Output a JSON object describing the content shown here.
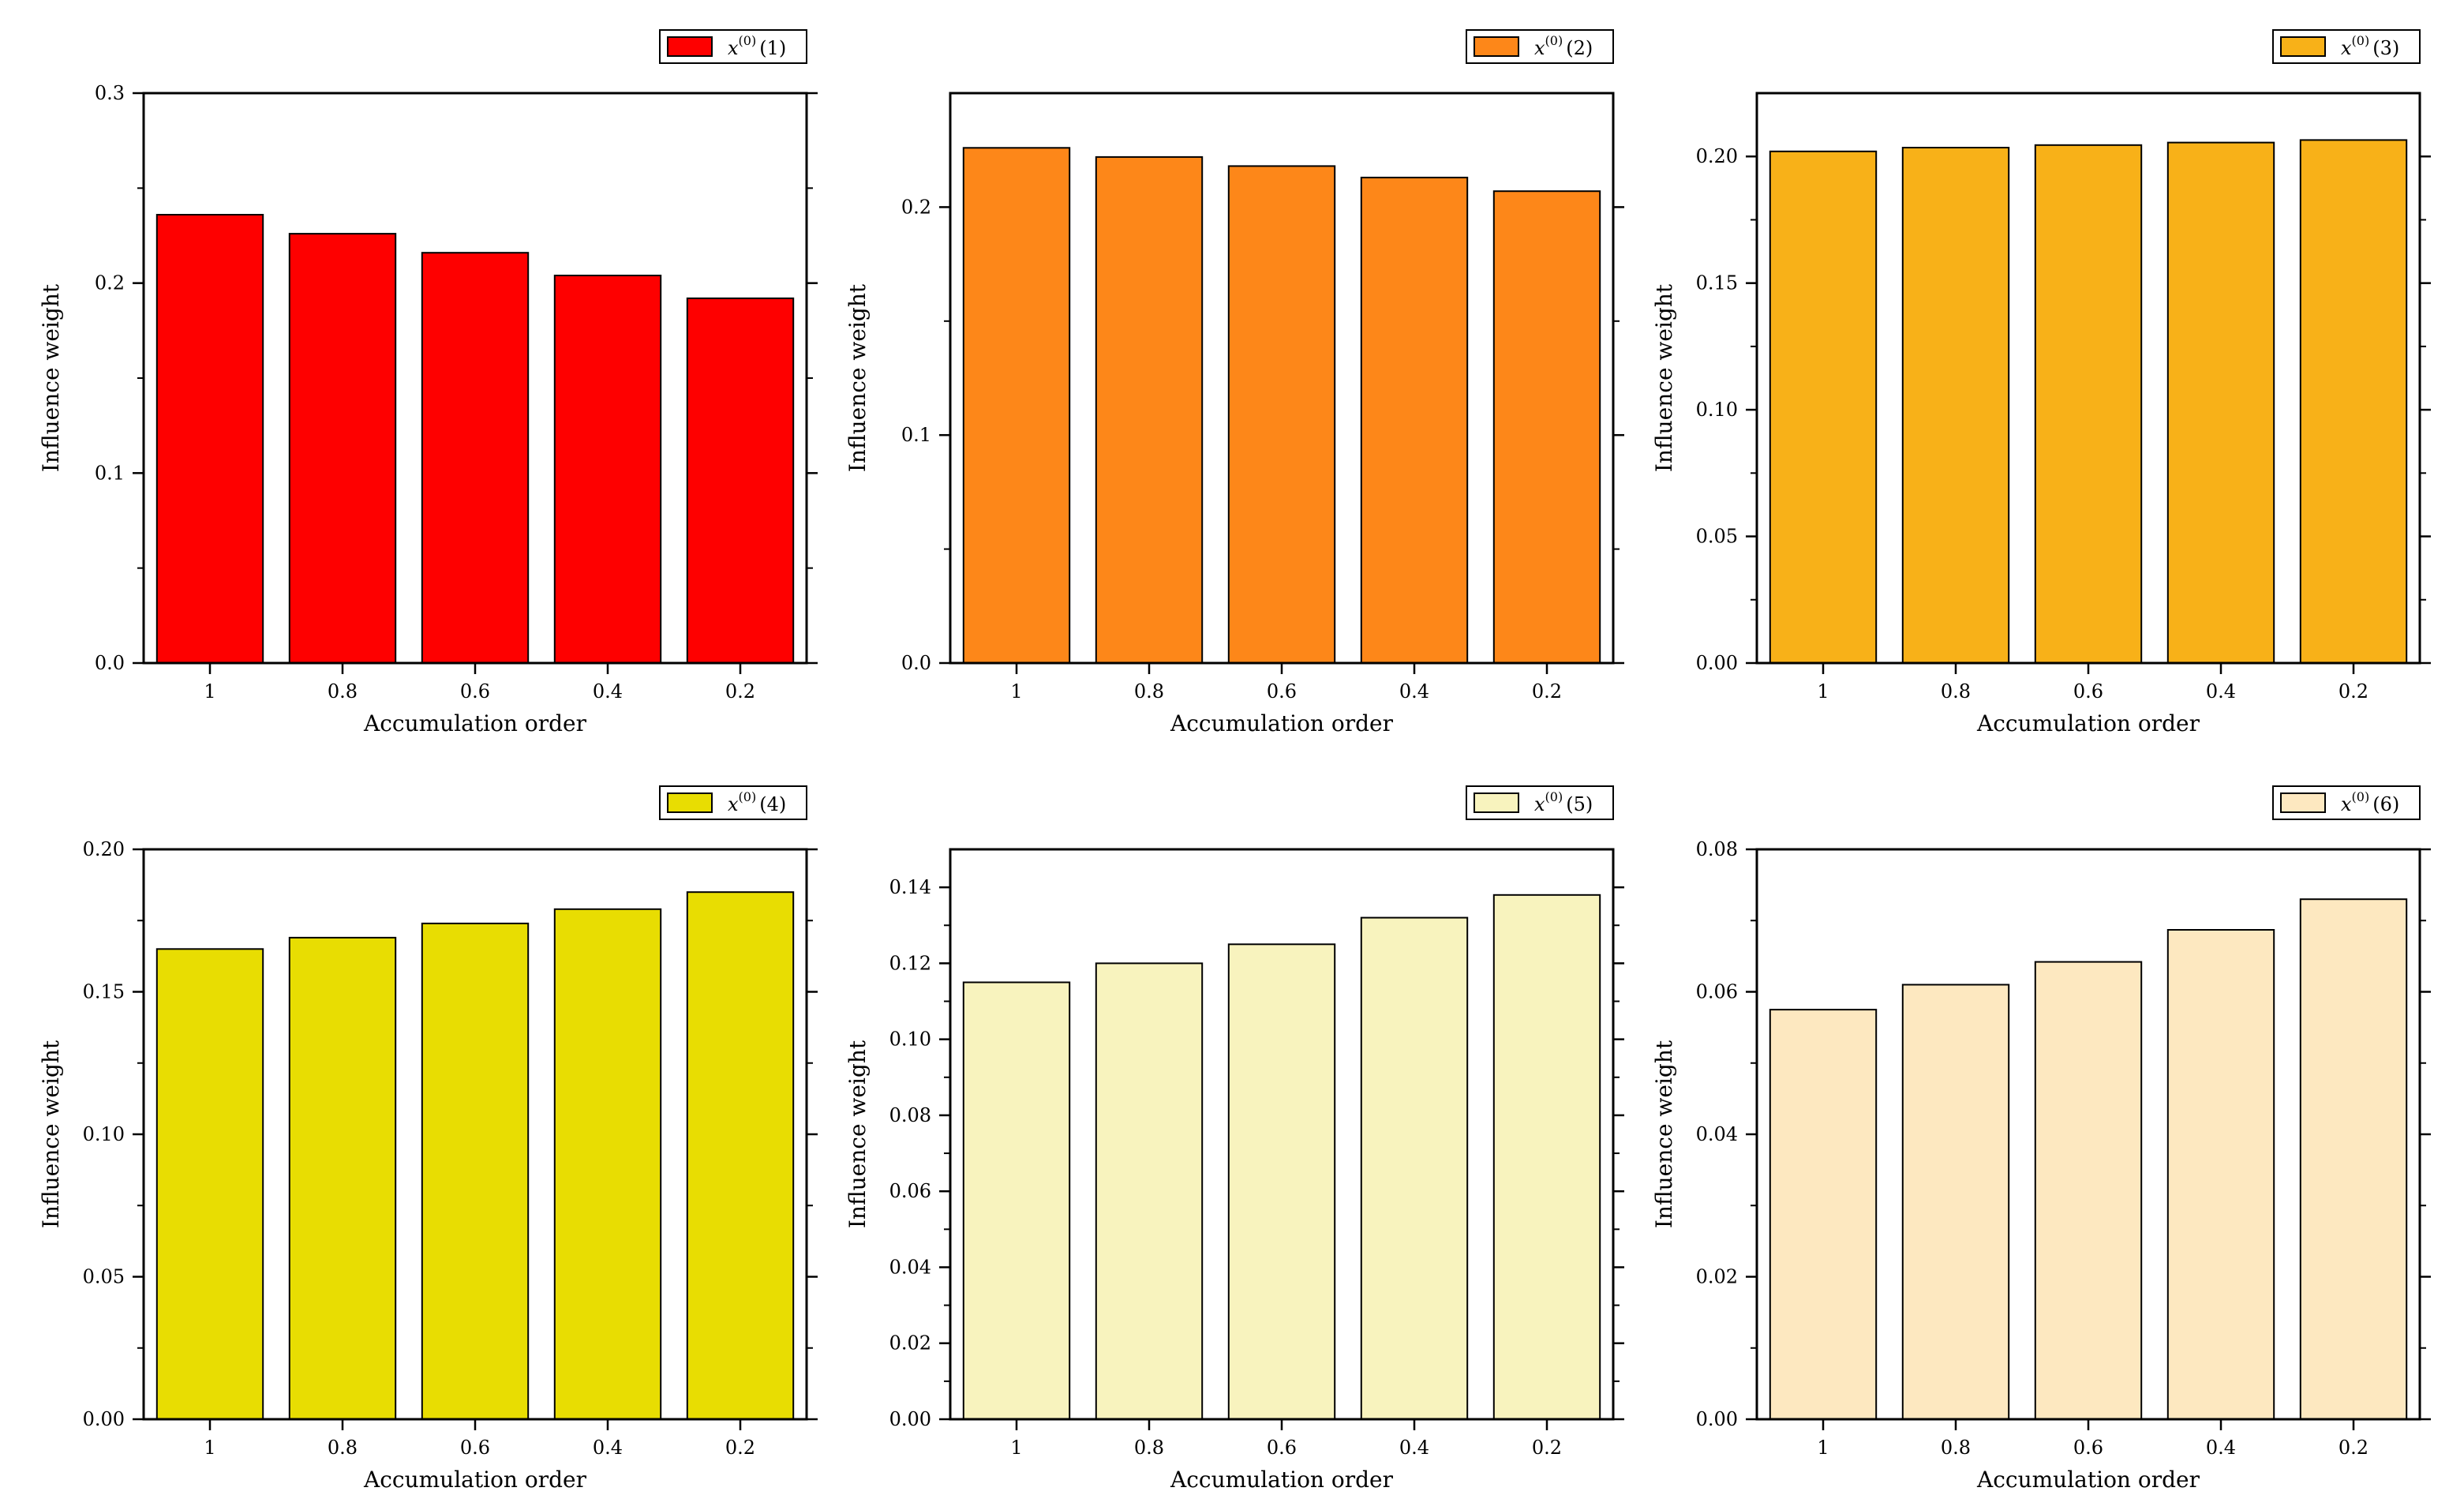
{
  "chart_data": [
    {
      "type": "bar",
      "legend": {
        "base": "x",
        "sup": "(0)",
        "suffix": "(1)"
      },
      "color": "#fe0000",
      "categories": [
        "1",
        "0.8",
        "0.6",
        "0.4",
        "0.2"
      ],
      "values": [
        0.236,
        0.226,
        0.216,
        0.204,
        0.192
      ],
      "ylim": [
        0,
        0.3
      ],
      "yticks": [
        0,
        0.1,
        0.2,
        0.3
      ],
      "ytick_labels": [
        "0.0",
        "0.1",
        "0.2",
        "0.3"
      ],
      "xlabel": "Accumulation order",
      "ylabel": "Influence weight"
    },
    {
      "type": "bar",
      "legend": {
        "base": "x",
        "sup": "(0)",
        "suffix": "(2)"
      },
      "color": "#fd8719",
      "categories": [
        "1",
        "0.8",
        "0.6",
        "0.4",
        "0.2"
      ],
      "values": [
        0.226,
        0.222,
        0.218,
        0.213,
        0.207
      ],
      "ylim": [
        0,
        0.25
      ],
      "yticks": [
        0,
        0.1,
        0.2
      ],
      "ytick_labels": [
        "0.0",
        "0.1",
        "0.2"
      ],
      "xlabel": "Accumulation order",
      "ylabel": "Influence weight"
    },
    {
      "type": "bar",
      "legend": {
        "base": "x",
        "sup": "(0)",
        "suffix": "(3)"
      },
      "color": "#f8b118",
      "categories": [
        "1",
        "0.8",
        "0.6",
        "0.4",
        "0.2"
      ],
      "values": [
        0.202,
        0.2035,
        0.2045,
        0.2055,
        0.2065
      ],
      "ylim": [
        0,
        0.225
      ],
      "yticks": [
        0,
        0.05,
        0.1,
        0.15,
        0.2
      ],
      "ytick_labels": [
        "0.00",
        "0.05",
        "0.10",
        "0.15",
        "0.20"
      ],
      "xlabel": "Accumulation order",
      "ylabel": "Influence weight"
    },
    {
      "type": "bar",
      "legend": {
        "base": "x",
        "sup": "(0)",
        "suffix": "(4)"
      },
      "color": "#e8dd02",
      "categories": [
        "1",
        "0.8",
        "0.6",
        "0.4",
        "0.2"
      ],
      "values": [
        0.165,
        0.169,
        0.174,
        0.179,
        0.185
      ],
      "ylim": [
        0,
        0.2
      ],
      "yticks": [
        0,
        0.05,
        0.1,
        0.15,
        0.2
      ],
      "ytick_labels": [
        "0.00",
        "0.05",
        "0.10",
        "0.15",
        "0.20"
      ],
      "xlabel": "Accumulation order",
      "ylabel": "Influence weight"
    },
    {
      "type": "bar",
      "legend": {
        "base": "x",
        "sup": "(0)",
        "suffix": "(5)"
      },
      "color": "#f8f3be",
      "categories": [
        "1",
        "0.8",
        "0.6",
        "0.4",
        "0.2"
      ],
      "values": [
        0.115,
        0.12,
        0.125,
        0.132,
        0.138
      ],
      "ylim": [
        0,
        0.15
      ],
      "yticks": [
        0,
        0.02,
        0.04,
        0.06,
        0.08,
        0.1,
        0.12,
        0.14
      ],
      "ytick_labels": [
        "0.00",
        "0.02",
        "0.04",
        "0.06",
        "0.08",
        "0.10",
        "0.12",
        "0.14"
      ],
      "xlabel": "Accumulation order",
      "ylabel": "Influence weight"
    },
    {
      "type": "bar",
      "legend": {
        "base": "x",
        "sup": "(0)",
        "suffix": "(6)"
      },
      "color": "#fde8c0",
      "categories": [
        "1",
        "0.8",
        "0.6",
        "0.4",
        "0.2"
      ],
      "values": [
        0.0575,
        0.061,
        0.0642,
        0.0687,
        0.073
      ],
      "ylim": [
        0,
        0.08
      ],
      "yticks": [
        0,
        0.02,
        0.04,
        0.06,
        0.08
      ],
      "ytick_labels": [
        "0.00",
        "0.02",
        "0.04",
        "0.06",
        "0.08"
      ],
      "xlabel": "Accumulation order",
      "ylabel": "Influence weight"
    }
  ]
}
